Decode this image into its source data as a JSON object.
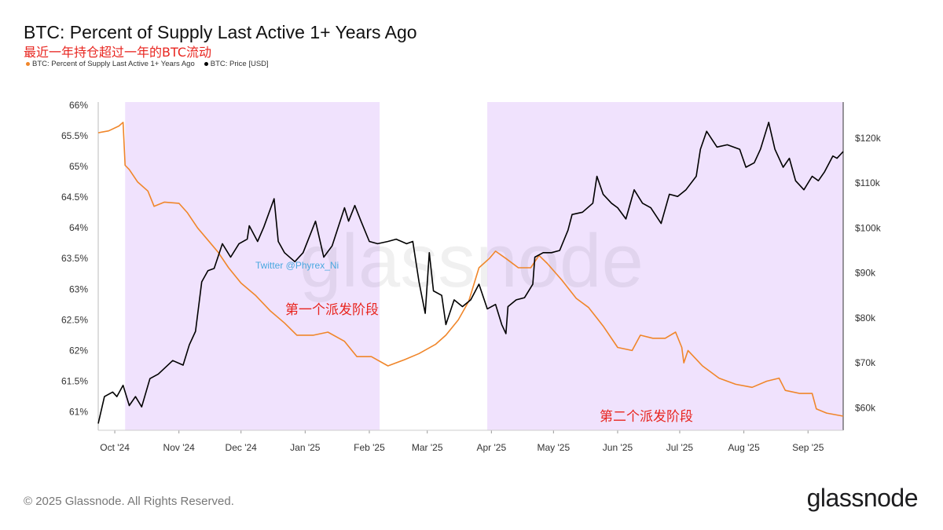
{
  "title": "BTC: Percent of Supply Last Active 1+ Years Ago",
  "subtitle": "最近一年持仓超过一年的BTC流动",
  "legend": [
    {
      "label": "BTC: Percent of Supply Last Active 1+ Years Ago",
      "color": "#f0862a"
    },
    {
      "label": "BTC: Price [USD]",
      "color": "#000000"
    }
  ],
  "watermark": "glassnode",
  "twitter_label": "Twitter @Phyrex_Ni",
  "footer": {
    "copyright": "© 2025 Glassnode. All Rights Reserved.",
    "logo": "glassnode"
  },
  "chart_data": {
    "type": "line",
    "x_range": [
      "2024-09-23",
      "2025-09-18"
    ],
    "x_ticks": [
      "Oct '24",
      "Nov '24",
      "Dec '24",
      "Jan '25",
      "Feb '25",
      "Mar '25",
      "Apr '25",
      "May '25",
      "Jun '25",
      "Jul '25",
      "Aug '25",
      "Sep '25"
    ],
    "y_left": {
      "ticks": [
        "61%",
        "61.5%",
        "62%",
        "62.5%",
        "63%",
        "63.5%",
        "64%",
        "64.5%",
        "65%",
        "65.5%",
        "66%"
      ],
      "range": [
        60.7,
        66.05
      ]
    },
    "y_right": {
      "ticks": [
        "$60k",
        "$70k",
        "$80k",
        "$90k",
        "$100k",
        "$110k",
        "$120k"
      ],
      "range": [
        55000,
        128000
      ]
    },
    "annotations": [
      {
        "text": "第一个派发阶段",
        "color": "#e8251f"
      },
      {
        "text": "第二个派发阶段",
        "color": "#e8251f"
      }
    ],
    "shaded_ranges": [
      [
        "2024-10-06",
        "2025-02-06"
      ],
      [
        "2025-03-30",
        "2025-09-18"
      ]
    ],
    "series": [
      {
        "name": "BTC: Percent of Supply Last Active 1+ Years Ago",
        "axis": "left",
        "color": "#f0862a",
        "points": [
          [
            "2024-09-23",
            65.55
          ],
          [
            "2024-09-28",
            65.58
          ],
          [
            "2024-10-03",
            65.66
          ],
          [
            "2024-10-05",
            65.72
          ],
          [
            "2024-10-06",
            65.02
          ],
          [
            "2024-10-08",
            64.95
          ],
          [
            "2024-10-12",
            64.75
          ],
          [
            "2024-10-17",
            64.6
          ],
          [
            "2024-10-20",
            64.35
          ],
          [
            "2024-10-25",
            64.42
          ],
          [
            "2024-11-01",
            64.4
          ],
          [
            "2024-11-05",
            64.25
          ],
          [
            "2024-11-10",
            64.0
          ],
          [
            "2024-11-15",
            63.8
          ],
          [
            "2024-11-20",
            63.6
          ],
          [
            "2024-11-25",
            63.35
          ],
          [
            "2024-12-01",
            63.1
          ],
          [
            "2024-12-08",
            62.9
          ],
          [
            "2024-12-15",
            62.65
          ],
          [
            "2024-12-22",
            62.45
          ],
          [
            "2024-12-28",
            62.25
          ],
          [
            "2025-01-05",
            62.25
          ],
          [
            "2025-01-12",
            62.3
          ],
          [
            "2025-01-20",
            62.15
          ],
          [
            "2025-01-26",
            61.9
          ],
          [
            "2025-02-02",
            61.9
          ],
          [
            "2025-02-10",
            61.75
          ],
          [
            "2025-02-18",
            61.85
          ],
          [
            "2025-02-25",
            61.95
          ],
          [
            "2025-03-05",
            62.1
          ],
          [
            "2025-03-10",
            62.25
          ],
          [
            "2025-03-16",
            62.5
          ],
          [
            "2025-03-21",
            62.8
          ],
          [
            "2025-03-26",
            63.35
          ],
          [
            "2025-03-31",
            63.5
          ],
          [
            "2025-04-03",
            63.62
          ],
          [
            "2025-04-08",
            63.5
          ],
          [
            "2025-04-14",
            63.35
          ],
          [
            "2025-04-20",
            63.35
          ],
          [
            "2025-04-24",
            63.55
          ],
          [
            "2025-04-28",
            63.42
          ],
          [
            "2025-05-05",
            63.15
          ],
          [
            "2025-05-12",
            62.85
          ],
          [
            "2025-05-18",
            62.7
          ],
          [
            "2025-05-25",
            62.4
          ],
          [
            "2025-06-01",
            62.05
          ],
          [
            "2025-06-08",
            62.0
          ],
          [
            "2025-06-12",
            62.25
          ],
          [
            "2025-06-18",
            62.2
          ],
          [
            "2025-06-24",
            62.2
          ],
          [
            "2025-06-29",
            62.3
          ],
          [
            "2025-07-02",
            62.05
          ],
          [
            "2025-07-03",
            61.8
          ],
          [
            "2025-07-05",
            62.0
          ],
          [
            "2025-07-12",
            61.75
          ],
          [
            "2025-07-20",
            61.55
          ],
          [
            "2025-07-28",
            61.45
          ],
          [
            "2025-08-05",
            61.4
          ],
          [
            "2025-08-12",
            61.5
          ],
          [
            "2025-08-18",
            61.55
          ],
          [
            "2025-08-21",
            61.35
          ],
          [
            "2025-08-28",
            61.3
          ],
          [
            "2025-09-03",
            61.3
          ],
          [
            "2025-09-05",
            61.05
          ],
          [
            "2025-09-10",
            60.98
          ],
          [
            "2025-09-18",
            60.93
          ]
        ]
      },
      {
        "name": "BTC: Price [USD]",
        "axis": "right",
        "color": "#000000",
        "points": [
          [
            "2024-09-23",
            56500
          ],
          [
            "2024-09-26",
            62500
          ],
          [
            "2024-09-30",
            63500
          ],
          [
            "2024-10-02",
            62500
          ],
          [
            "2024-10-05",
            65000
          ],
          [
            "2024-10-08",
            60500
          ],
          [
            "2024-10-11",
            62500
          ],
          [
            "2024-10-14",
            60200
          ],
          [
            "2024-10-18",
            66500
          ],
          [
            "2024-10-22",
            67500
          ],
          [
            "2024-10-29",
            70500
          ],
          [
            "2024-11-03",
            69500
          ],
          [
            "2024-11-06",
            74000
          ],
          [
            "2024-11-09",
            77000
          ],
          [
            "2024-11-12",
            88000
          ],
          [
            "2024-11-15",
            90500
          ],
          [
            "2024-11-18",
            91000
          ],
          [
            "2024-11-22",
            96500
          ],
          [
            "2024-11-26",
            93500
          ],
          [
            "2024-11-30",
            96500
          ],
          [
            "2024-12-04",
            97500
          ],
          [
            "2024-12-05",
            100500
          ],
          [
            "2024-12-09",
            97000
          ],
          [
            "2024-12-12",
            100200
          ],
          [
            "2024-12-17",
            106500
          ],
          [
            "2024-12-19",
            97000
          ],
          [
            "2024-12-22",
            94500
          ],
          [
            "2024-12-27",
            92500
          ],
          [
            "2024-12-31",
            94500
          ],
          [
            "2025-01-06",
            101500
          ],
          [
            "2025-01-10",
            93500
          ],
          [
            "2025-01-14",
            96000
          ],
          [
            "2025-01-20",
            104500
          ],
          [
            "2025-01-22",
            101500
          ],
          [
            "2025-01-25",
            105000
          ],
          [
            "2025-01-28",
            101500
          ],
          [
            "2025-02-01",
            97000
          ],
          [
            "2025-02-05",
            96500
          ],
          [
            "2025-02-10",
            97000
          ],
          [
            "2025-02-14",
            97500
          ],
          [
            "2025-02-19",
            96500
          ],
          [
            "2025-02-22",
            97000
          ],
          [
            "2025-02-25",
            88000
          ],
          [
            "2025-02-28",
            81000
          ],
          [
            "2025-03-02",
            94500
          ],
          [
            "2025-03-04",
            86000
          ],
          [
            "2025-03-08",
            85000
          ],
          [
            "2025-03-10",
            78500
          ],
          [
            "2025-03-14",
            84000
          ],
          [
            "2025-03-18",
            82500
          ],
          [
            "2025-03-22",
            84000
          ],
          [
            "2025-03-26",
            87500
          ],
          [
            "2025-03-30",
            82000
          ],
          [
            "2025-04-03",
            83000
          ],
          [
            "2025-04-06",
            78500
          ],
          [
            "2025-04-08",
            76500
          ],
          [
            "2025-04-09",
            82500
          ],
          [
            "2025-04-13",
            84000
          ],
          [
            "2025-04-17",
            84500
          ],
          [
            "2025-04-21",
            87500
          ],
          [
            "2025-04-22",
            93500
          ],
          [
            "2025-04-26",
            94500
          ],
          [
            "2025-04-30",
            94500
          ],
          [
            "2025-05-04",
            95000
          ],
          [
            "2025-05-08",
            99500
          ],
          [
            "2025-05-10",
            103000
          ],
          [
            "2025-05-15",
            103500
          ],
          [
            "2025-05-20",
            105500
          ],
          [
            "2025-05-22",
            111500
          ],
          [
            "2025-05-25",
            107500
          ],
          [
            "2025-05-29",
            105500
          ],
          [
            "2025-06-01",
            104500
          ],
          [
            "2025-06-05",
            102000
          ],
          [
            "2025-06-09",
            108500
          ],
          [
            "2025-06-13",
            105500
          ],
          [
            "2025-06-17",
            104500
          ],
          [
            "2025-06-22",
            101000
          ],
          [
            "2025-06-26",
            107500
          ],
          [
            "2025-06-30",
            107000
          ],
          [
            "2025-07-04",
            108500
          ],
          [
            "2025-07-09",
            111500
          ],
          [
            "2025-07-11",
            117500
          ],
          [
            "2025-07-14",
            121500
          ],
          [
            "2025-07-19",
            118000
          ],
          [
            "2025-07-24",
            118500
          ],
          [
            "2025-07-30",
            117500
          ],
          [
            "2025-08-02",
            113500
          ],
          [
            "2025-08-06",
            114500
          ],
          [
            "2025-08-09",
            117500
          ],
          [
            "2025-08-13",
            123500
          ],
          [
            "2025-08-16",
            117500
          ],
          [
            "2025-08-20",
            113500
          ],
          [
            "2025-08-23",
            115500
          ],
          [
            "2025-08-26",
            110500
          ],
          [
            "2025-08-30",
            108500
          ],
          [
            "2025-09-03",
            111500
          ],
          [
            "2025-09-06",
            110500
          ],
          [
            "2025-09-09",
            112500
          ],
          [
            "2025-09-13",
            116000
          ],
          [
            "2025-09-15",
            115500
          ],
          [
            "2025-09-18",
            117000
          ]
        ]
      }
    ]
  }
}
